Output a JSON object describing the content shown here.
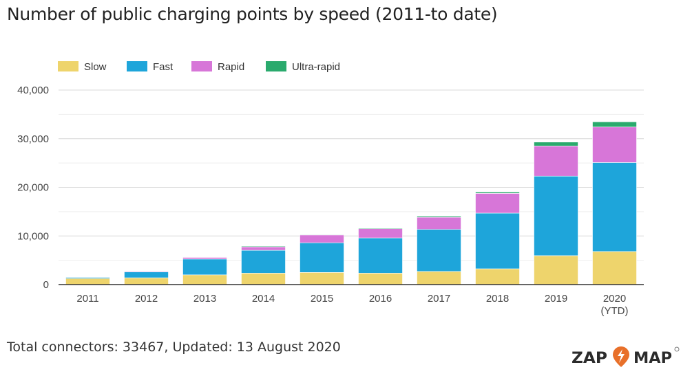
{
  "chart_data": {
    "type": "bar",
    "stacked": true,
    "title": "Number of public charging points by speed (2011-to date)",
    "categories": [
      "2011",
      "2012",
      "2013",
      "2014",
      "2015",
      "2016",
      "2017",
      "2018",
      "2019",
      "2020\n(YTD)"
    ],
    "category_labels": [
      [
        "2011"
      ],
      [
        "2012"
      ],
      [
        "2013"
      ],
      [
        "2014"
      ],
      [
        "2015"
      ],
      [
        "2016"
      ],
      [
        "2017"
      ],
      [
        "2018"
      ],
      [
        "2019"
      ],
      [
        "2020",
        "(YTD)"
      ]
    ],
    "series": [
      {
        "name": "Slow",
        "color": "#eed46c",
        "values": [
          1250,
          1400,
          2000,
          2350,
          2500,
          2350,
          2700,
          3250,
          5950,
          6800
        ]
      },
      {
        "name": "Fast",
        "color": "#1ea5da",
        "values": [
          250,
          1200,
          3250,
          4700,
          6100,
          7250,
          8650,
          11450,
          16350,
          18300
        ]
      },
      {
        "name": "Rapid",
        "color": "#d776d8",
        "values": [
          50,
          150,
          350,
          700,
          1600,
          1900,
          2500,
          4050,
          6200,
          7300
        ]
      },
      {
        "name": "Ultra-rapid",
        "color": "#2aaa6d",
        "values": [
          0,
          80,
          80,
          150,
          100,
          130,
          230,
          280,
          800,
          1067
        ]
      }
    ],
    "ylim": [
      0,
      40000
    ],
    "yticks": [
      0,
      10000,
      20000,
      30000,
      40000
    ],
    "ytick_labels": [
      "0",
      "10,000",
      "20,000",
      "30,000",
      "40,000"
    ],
    "grid": true,
    "legend_position": "top-left",
    "xlabel": "",
    "ylabel": ""
  },
  "footer": "Total connectors: 33467, Updated: 13 August 2020",
  "logo": {
    "text_left": "ZAP",
    "text_right": "MAP",
    "color": "#e8702a"
  }
}
